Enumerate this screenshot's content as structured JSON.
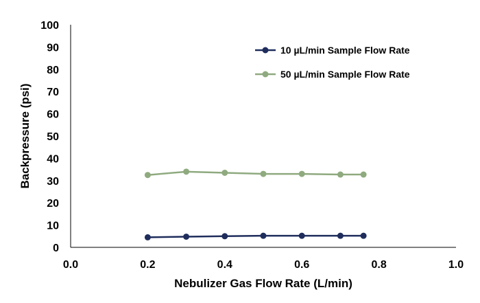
{
  "chart_data": {
    "type": "line",
    "title": "",
    "xlabel": "Nebulizer Gas Flow Rate (L/min)",
    "ylabel": "Backpressure (psi)",
    "xlim": [
      0.0,
      1.0
    ],
    "ylim": [
      0,
      100
    ],
    "xticks": [
      "0.0",
      "0.2",
      "0.4",
      "0.6",
      "0.8",
      "1.0"
    ],
    "yticks": [
      "0",
      "10",
      "20",
      "30",
      "40",
      "50",
      "60",
      "70",
      "80",
      "90",
      "100"
    ],
    "grid": false,
    "legend_position": "top-right",
    "series": [
      {
        "name": "10 µL/min Sample Flow Rate",
        "color": "#1f2d5c",
        "x": [
          0.2,
          0.3,
          0.4,
          0.5,
          0.6,
          0.7,
          0.76
        ],
        "y": [
          4.5,
          4.8,
          5.0,
          5.2,
          5.2,
          5.2,
          5.2
        ]
      },
      {
        "name": "50 µL/min Sample Flow Rate",
        "color": "#8faa7f",
        "x": [
          0.2,
          0.3,
          0.4,
          0.5,
          0.6,
          0.7,
          0.76
        ],
        "y": [
          32.5,
          34.0,
          33.5,
          33.0,
          33.0,
          32.7,
          32.7
        ]
      }
    ]
  }
}
